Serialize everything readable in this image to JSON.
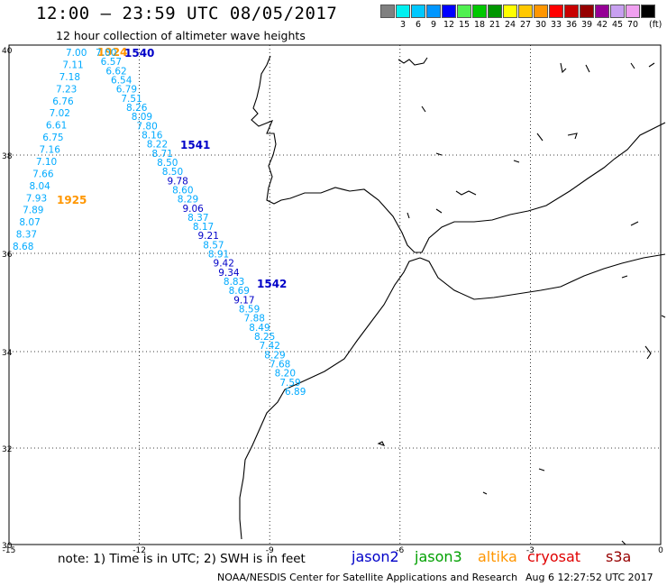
{
  "header": {
    "title": "12:00 – 23:59 UTC 08/05/2017",
    "subtitle": "12 hour collection of altimeter wave heights"
  },
  "color_scale": {
    "unit": "(ft)",
    "swatches": [
      {
        "color": "#808080",
        "label": ""
      },
      {
        "color": "#00f0f0",
        "label": "3"
      },
      {
        "color": "#00c8ff",
        "label": "6"
      },
      {
        "color": "#0096ff",
        "label": "9"
      },
      {
        "color": "#0000ff",
        "label": "12"
      },
      {
        "color": "#50f050",
        "label": "15"
      },
      {
        "color": "#00c800",
        "label": "18"
      },
      {
        "color": "#009600",
        "label": "21"
      },
      {
        "color": "#ffff00",
        "label": "24"
      },
      {
        "color": "#ffc800",
        "label": "27"
      },
      {
        "color": "#ff9600",
        "label": "30"
      },
      {
        "color": "#ff0000",
        "label": "33"
      },
      {
        "color": "#c80000",
        "label": "36"
      },
      {
        "color": "#960000",
        "label": "39"
      },
      {
        "color": "#960096",
        "label": "42"
      },
      {
        "color": "#c8a0f0",
        "label": "45"
      },
      {
        "color": "#f0a0f0",
        "label": "70"
      },
      {
        "color": "#000000",
        "label": ""
      }
    ]
  },
  "axes": {
    "x_ticks": [
      "-15",
      "-12",
      "-9",
      "-6",
      "-3",
      "0"
    ],
    "y_ticks": [
      "40",
      "38",
      "36",
      "34",
      "32",
      "30"
    ]
  },
  "passes": [
    {
      "label": "1924",
      "color": "#ff9600"
    },
    {
      "label": "1540",
      "color": "#0000c8"
    },
    {
      "label": "1541",
      "color": "#0000c8"
    },
    {
      "label": "1925",
      "color": "#ff9600"
    },
    {
      "label": "1542",
      "color": "#0000c8"
    }
  ],
  "track_west": {
    "values": [
      "7.00",
      "7.11",
      "7.18",
      "7.23",
      "6.76",
      "7.02",
      "6.61",
      "6.75",
      "7.16",
      "7.10",
      "7.66",
      "8.04",
      "7.93",
      "7.89",
      "8.07",
      "8.37",
      "8.68"
    ],
    "color": "#00aaff"
  },
  "track_east": {
    "values": [
      "7.00",
      "6.57",
      "6.62",
      "6.54",
      "6.79",
      "7.51",
      "8.26",
      "8.09",
      "7.80",
      "8.16",
      "8.22",
      "8.71",
      "8.50",
      "8.50",
      "9.78",
      "8.60",
      "8.29",
      "9.06",
      "8.37",
      "8.17",
      "9.21",
      "8.57",
      "8.91",
      "9.42",
      "9.34",
      "8.83",
      "8.69",
      "9.17",
      "8.59",
      "7.88",
      "8.49",
      "8.25",
      "7.42",
      "8.29",
      "7.68",
      "8.20",
      "7.59",
      "6.89"
    ],
    "colors": {
      "default": "#00aaff",
      "high": "#0000c8"
    }
  },
  "footer": {
    "note": "note:  1) Time is in UTC;  2) SWH is in feet",
    "satellites": [
      {
        "name": "jason2",
        "color": "#0000c8"
      },
      {
        "name": "jason3",
        "color": "#00a000"
      },
      {
        "name": "altika",
        "color": "#ff9600"
      },
      {
        "name": "cryosat",
        "color": "#e00000"
      },
      {
        "name": "s3a",
        "color": "#960000"
      }
    ],
    "credit": "NOAA/NESDIS Center for Satellite Applications and Research",
    "timestamp": "Aug  6 12:27:52 UTC 2017"
  }
}
